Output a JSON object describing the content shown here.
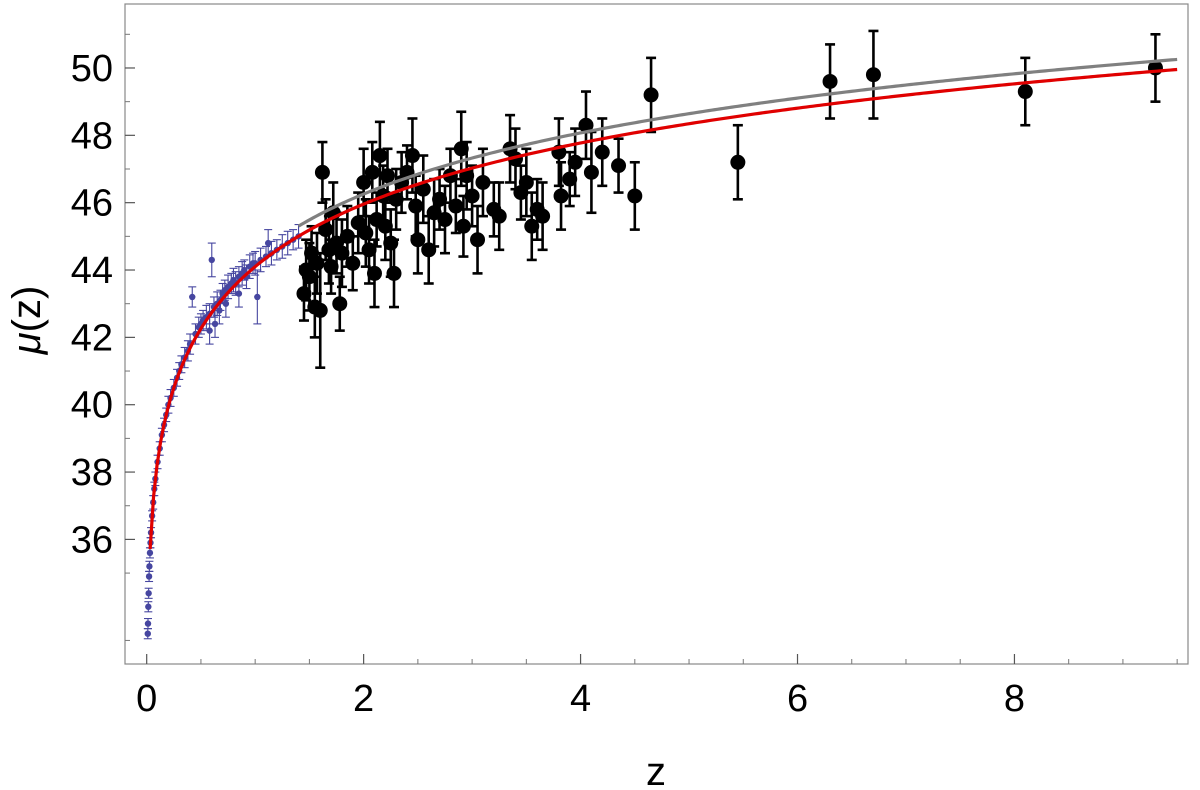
{
  "chart_data": {
    "type": "scatter",
    "xlabel": "z",
    "ylabel": {
      "symbol": "μ",
      "suffix": "(z)"
    },
    "xlim": [
      -0.2,
      9.6
    ],
    "ylim": [
      32.3,
      51.9
    ],
    "xticks": [
      0,
      2,
      4,
      6,
      8
    ],
    "xtick_labels": [
      "0",
      "2",
      "4",
      "6",
      "8"
    ],
    "yticks": [
      36,
      38,
      40,
      42,
      44,
      46,
      48,
      50
    ],
    "ytick_labels": [
      "36",
      "38",
      "40",
      "42",
      "44",
      "46",
      "48",
      "50"
    ],
    "grid": false,
    "colors": {
      "sn": "#4646a0",
      "grb": "#000000",
      "curve_gray": "#808080",
      "curve_red": "#e00000"
    },
    "series": [
      {
        "marker": "small-dot",
        "points": [
          [
            0.01,
            33.2,
            0.15
          ],
          [
            0.012,
            33.5,
            0.15
          ],
          [
            0.015,
            34.0,
            0.15
          ],
          [
            0.018,
            34.4,
            0.15
          ],
          [
            0.022,
            34.9,
            0.15
          ],
          [
            0.025,
            35.2,
            0.15
          ],
          [
            0.03,
            35.6,
            0.15
          ],
          [
            0.035,
            35.9,
            0.15
          ],
          [
            0.04,
            36.2,
            0.15
          ],
          [
            0.05,
            36.7,
            0.15
          ],
          [
            0.06,
            37.1,
            0.2
          ],
          [
            0.07,
            37.5,
            0.2
          ],
          [
            0.08,
            37.8,
            0.2
          ],
          [
            0.1,
            38.3,
            0.2
          ],
          [
            0.12,
            38.7,
            0.2
          ],
          [
            0.14,
            39.1,
            0.2
          ],
          [
            0.16,
            39.4,
            0.2
          ],
          [
            0.18,
            39.7,
            0.2
          ],
          [
            0.2,
            40.0,
            0.25
          ],
          [
            0.22,
            40.2,
            0.25
          ],
          [
            0.25,
            40.5,
            0.25
          ],
          [
            0.28,
            40.8,
            0.25
          ],
          [
            0.3,
            41.0,
            0.25
          ],
          [
            0.32,
            41.2,
            0.25
          ],
          [
            0.35,
            41.4,
            0.3
          ],
          [
            0.38,
            41.6,
            0.3
          ],
          [
            0.4,
            41.8,
            0.3
          ],
          [
            0.42,
            43.2,
            0.3
          ],
          [
            0.45,
            42.1,
            0.3
          ],
          [
            0.48,
            42.3,
            0.3
          ],
          [
            0.5,
            42.4,
            0.3
          ],
          [
            0.52,
            42.5,
            0.3
          ],
          [
            0.55,
            42.6,
            0.35
          ],
          [
            0.58,
            42.7,
            0.3
          ],
          [
            0.6,
            44.3,
            0.5
          ],
          [
            0.62,
            42.9,
            0.3
          ],
          [
            0.65,
            43.0,
            0.35
          ],
          [
            0.68,
            43.1,
            0.3
          ],
          [
            0.7,
            43.3,
            0.3
          ],
          [
            0.72,
            43.4,
            0.3
          ],
          [
            0.75,
            43.5,
            0.35
          ],
          [
            0.78,
            43.6,
            0.3
          ],
          [
            0.8,
            43.7,
            0.35
          ],
          [
            0.82,
            43.6,
            0.35
          ],
          [
            0.85,
            43.8,
            0.3
          ],
          [
            0.88,
            43.9,
            0.35
          ],
          [
            0.9,
            44.0,
            0.3
          ],
          [
            0.92,
            43.8,
            0.35
          ],
          [
            0.95,
            44.1,
            0.35
          ],
          [
            0.98,
            44.2,
            0.3
          ],
          [
            1.0,
            44.2,
            0.35
          ],
          [
            1.02,
            43.2,
            0.8
          ],
          [
            1.05,
            44.3,
            0.35
          ],
          [
            1.1,
            44.4,
            0.3
          ],
          [
            1.15,
            44.5,
            0.35
          ],
          [
            1.2,
            44.6,
            0.3
          ],
          [
            1.25,
            44.7,
            0.35
          ],
          [
            1.3,
            44.8,
            0.35
          ],
          [
            1.35,
            44.9,
            0.3
          ],
          [
            1.4,
            45.0,
            0.35
          ],
          [
            0.58,
            42.2,
            0.4
          ],
          [
            0.63,
            42.4,
            0.4
          ],
          [
            0.67,
            42.8,
            0.4
          ],
          [
            0.73,
            43.0,
            0.4
          ],
          [
            0.85,
            43.3,
            0.4
          ],
          [
            1.12,
            44.8,
            0.4
          ]
        ]
      },
      {
        "marker": "large-dot",
        "points": [
          [
            1.45,
            43.3,
            0.8
          ],
          [
            1.47,
            44.0,
            0.9
          ],
          [
            1.5,
            43.8,
            1.0
          ],
          [
            1.52,
            44.5,
            0.8
          ],
          [
            1.55,
            42.9,
            0.9
          ],
          [
            1.57,
            44.2,
            0.9
          ],
          [
            1.6,
            42.8,
            1.7
          ],
          [
            1.62,
            46.9,
            0.9
          ],
          [
            1.65,
            45.2,
            0.9
          ],
          [
            1.68,
            44.6,
            1.0
          ],
          [
            1.7,
            44.1,
            0.8
          ],
          [
            1.72,
            45.7,
            0.9
          ],
          [
            1.75,
            44.8,
            0.9
          ],
          [
            1.78,
            43.0,
            0.8
          ],
          [
            1.8,
            44.5,
            1.0
          ],
          [
            1.85,
            45.0,
            0.9
          ],
          [
            1.9,
            44.2,
            0.8
          ],
          [
            1.95,
            45.4,
            0.9
          ],
          [
            2.0,
            46.6,
            1.0
          ],
          [
            2.02,
            45.1,
            1.0
          ],
          [
            2.05,
            44.6,
            1.0
          ],
          [
            2.08,
            46.9,
            0.9
          ],
          [
            2.1,
            43.9,
            1.0
          ],
          [
            2.12,
            45.5,
            0.8
          ],
          [
            2.15,
            47.4,
            1.0
          ],
          [
            2.18,
            46.2,
            0.9
          ],
          [
            2.2,
            45.3,
            1.0
          ],
          [
            2.22,
            46.8,
            0.8
          ],
          [
            2.25,
            44.8,
            1.0
          ],
          [
            2.28,
            43.9,
            1.0
          ],
          [
            2.3,
            46.1,
            0.9
          ],
          [
            2.35,
            46.6,
            0.9
          ],
          [
            2.4,
            46.9,
            0.8
          ],
          [
            2.45,
            47.4,
            1.1
          ],
          [
            2.48,
            45.9,
            0.9
          ],
          [
            2.5,
            44.9,
            1.0
          ],
          [
            2.55,
            46.4,
            1.0
          ],
          [
            2.6,
            44.6,
            1.0
          ],
          [
            2.65,
            45.7,
            1.0
          ],
          [
            2.7,
            46.1,
            0.9
          ],
          [
            2.75,
            45.5,
            1.0
          ],
          [
            2.8,
            46.8,
            0.8
          ],
          [
            2.85,
            45.9,
            0.8
          ],
          [
            2.9,
            47.6,
            1.1
          ],
          [
            2.92,
            45.3,
            0.9
          ],
          [
            2.95,
            46.8,
            1.0
          ],
          [
            3.0,
            46.2,
            0.9
          ],
          [
            3.05,
            44.9,
            1.0
          ],
          [
            3.1,
            46.6,
            1.0
          ],
          [
            3.2,
            45.8,
            0.8
          ],
          [
            3.25,
            45.6,
            1.0
          ],
          [
            3.35,
            47.6,
            1.0
          ],
          [
            3.4,
            47.3,
            0.9
          ],
          [
            3.45,
            46.3,
            0.8
          ],
          [
            3.5,
            46.6,
            1.0
          ],
          [
            3.55,
            45.3,
            1.0
          ],
          [
            3.6,
            45.8,
            0.9
          ],
          [
            3.65,
            45.6,
            1.0
          ],
          [
            3.8,
            47.5,
            1.0
          ],
          [
            3.82,
            46.2,
            1.0
          ],
          [
            3.9,
            46.7,
            0.8
          ],
          [
            3.95,
            47.2,
            1.0
          ],
          [
            4.05,
            48.3,
            1.0
          ],
          [
            4.1,
            46.9,
            1.2
          ],
          [
            4.2,
            47.5,
            1.0
          ],
          [
            4.35,
            47.1,
            0.8
          ],
          [
            4.5,
            46.2,
            1.0
          ],
          [
            4.65,
            49.2,
            1.1
          ],
          [
            5.45,
            47.2,
            1.1
          ],
          [
            6.3,
            49.6,
            1.1
          ],
          [
            6.7,
            49.8,
            1.3
          ],
          [
            8.1,
            49.3,
            1.0
          ],
          [
            9.3,
            50.0,
            1.0
          ]
        ]
      }
    ],
    "curves": [
      {
        "color_key": "curve_gray",
        "H0": 61,
        "Om": 0.3,
        "z_min": 1.4,
        "z_max": 9.5
      },
      {
        "color_key": "curve_red",
        "H0": 70,
        "Om": 0.3,
        "z_min": 0.0,
        "z_max": 9.5
      }
    ]
  }
}
